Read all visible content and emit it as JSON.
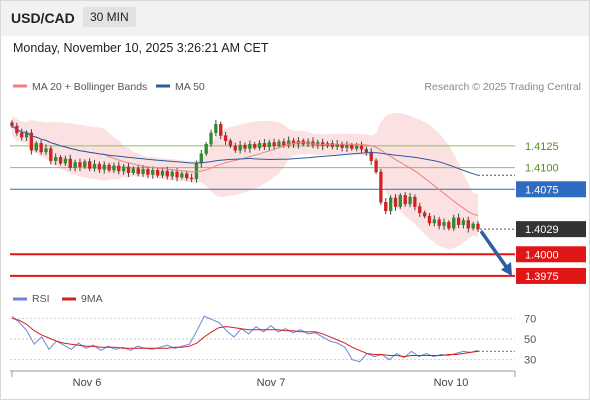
{
  "header": {
    "pair": "USD/CAD",
    "timeframe": "30 MIN",
    "datetime": "Monday, November 10, 2025 3:26:21 AM CET"
  },
  "legend": {
    "ma20": "MA 20 + Bollinger Bands",
    "ma50": "MA 50",
    "rsi": "RSI",
    "rsi_ma": "9MA"
  },
  "copyright": "Research © 2025 Trading Central",
  "colors": {
    "ma20": "#f08080",
    "ma50": "#2e5b9a",
    "bands": "#fadcdc",
    "support": "#e01515",
    "resistance_green": "#8fc05a",
    "level_blue": "#2d6cc0",
    "current": "#333333",
    "candle_up": "#2e8b2e",
    "candle_down": "#d32020",
    "rsi": "#6b86d6",
    "rsi_ma": "#d32020",
    "arrow": "#2d5fa0"
  },
  "chart_data": [
    {
      "type": "candlestick",
      "title": "USD/CAD 30 MIN",
      "ylim": [
        1.3968,
        1.4178
      ],
      "x_ticks": [
        "Nov 6",
        "Nov 7",
        "Nov 10"
      ],
      "series": [
        {
          "name": "MA 20 + Bollinger Bands"
        },
        {
          "name": "MA 50"
        }
      ],
      "closes": [
        1.4148,
        1.414,
        1.4135,
        1.414,
        1.412,
        1.4128,
        1.4118,
        1.4122,
        1.4108,
        1.4112,
        1.4105,
        1.411,
        1.41,
        1.4106,
        1.4101,
        1.4107,
        1.4099,
        1.4104,
        1.4098,
        1.4103,
        1.4097,
        1.4102,
        1.4096,
        1.4101,
        1.4094,
        1.4099,
        1.4093,
        1.4098,
        1.4092,
        1.4097,
        1.4091,
        1.4096,
        1.409,
        1.4095,
        1.4089,
        1.4093,
        1.4088,
        1.4087,
        1.4105,
        1.4116,
        1.4127,
        1.414,
        1.415,
        1.4137,
        1.4131,
        1.4125,
        1.412,
        1.4126,
        1.4122,
        1.4127,
        1.4123,
        1.4128,
        1.4124,
        1.4129,
        1.4125,
        1.413,
        1.4126,
        1.4131,
        1.4127,
        1.4131,
        1.4127,
        1.413,
        1.4126,
        1.4129,
        1.4125,
        1.4128,
        1.4124,
        1.4127,
        1.4123,
        1.4126,
        1.4122,
        1.4125,
        1.4121,
        1.4118,
        1.4108,
        1.4095,
        1.406,
        1.405,
        1.4065,
        1.4055,
        1.4068,
        1.4058,
        1.4066,
        1.4055,
        1.4048,
        1.4044,
        1.4036,
        1.404,
        1.4033,
        1.4037,
        1.403,
        1.4042,
        1.4034,
        1.4039,
        1.403,
        1.4035,
        1.4029
      ],
      "levels": [
        {
          "value": "1.4125",
          "kind": "resistance"
        },
        {
          "value": "1.4100",
          "kind": "resistance"
        },
        {
          "value": "1.4075",
          "kind": "pivot"
        },
        {
          "value": "1.4029",
          "kind": "last"
        },
        {
          "value": "1.4000",
          "kind": "support"
        },
        {
          "value": "1.3975",
          "kind": "support"
        }
      ],
      "forecast_arrow": {
        "from": 1.4029,
        "to": 1.3975
      }
    },
    {
      "type": "line",
      "title": "RSI",
      "ylim": [
        20,
        80
      ],
      "y_ticks": [
        "70",
        "50",
        "30"
      ],
      "series": [
        {
          "name": "RSI",
          "values": [
            72,
            66,
            58,
            45,
            52,
            40,
            48,
            44,
            40,
            46,
            41,
            44,
            39,
            43,
            40,
            42,
            39,
            43,
            41,
            40,
            42,
            44,
            41,
            43,
            45,
            58,
            72,
            69,
            66,
            58,
            52,
            60,
            55,
            62,
            57,
            63,
            57,
            60,
            56,
            59,
            55,
            56,
            52,
            48,
            46,
            42,
            30,
            28,
            36,
            33,
            35,
            30,
            36,
            32,
            38,
            33,
            36,
            33,
            35,
            34,
            36,
            38,
            37,
            39
          ]
        },
        {
          "name": "9MA",
          "values": [
            70,
            68,
            64,
            58,
            54,
            51,
            48,
            46,
            45,
            44,
            43,
            43,
            42,
            42,
            42,
            41,
            41,
            41,
            41,
            41,
            41,
            41,
            42,
            42,
            43,
            46,
            52,
            57,
            61,
            62,
            61,
            60,
            59,
            59,
            59,
            59,
            59,
            58,
            58,
            57,
            57,
            57,
            55,
            52,
            49,
            46,
            42,
            39,
            36,
            35,
            35,
            34,
            34,
            33,
            34,
            34,
            34,
            34,
            34,
            35,
            35,
            36,
            37,
            38
          ]
        }
      ]
    }
  ]
}
